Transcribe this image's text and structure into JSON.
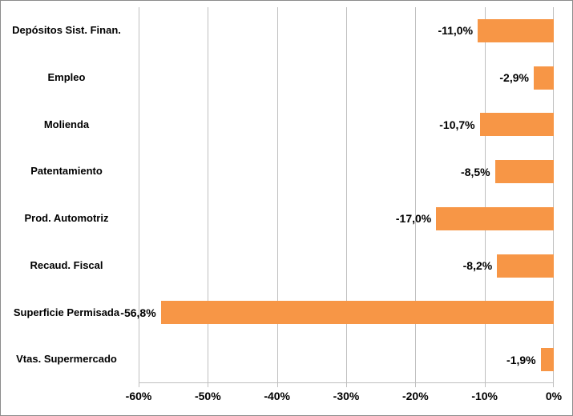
{
  "chart_data": {
    "type": "bar",
    "orientation": "horizontal",
    "title": "",
    "xlabel": "",
    "ylabel": "",
    "categories": [
      "Depósitos Sist. Finan.",
      "Empleo",
      "Molienda",
      "Patentamiento",
      "Prod. Automotriz",
      "Recaud. Fiscal",
      "Superficie Permisada",
      "Vtas. Supermercado"
    ],
    "values": [
      -11.0,
      -2.9,
      -10.7,
      -8.5,
      -17.0,
      -8.2,
      -56.8,
      -1.9
    ],
    "value_labels": [
      "-11,0%",
      "-2,9%",
      "-10,7%",
      "-8,5%",
      "-17,0%",
      "-8,2%",
      "-56,8%",
      "-1,9%"
    ],
    "xlim": [
      -60,
      0
    ],
    "x_tick_values": [
      -60,
      -50,
      -40,
      -30,
      -20,
      -10,
      0
    ],
    "x_ticks": [
      "-60%",
      "-50%",
      "-40%",
      "-30%",
      "-20%",
      "-10%",
      "0%"
    ],
    "grid": true,
    "legend": false,
    "bar_color": "#F79646",
    "gridline_color": "#BFBFBF",
    "axis_line_color": "#BFBFBF",
    "text_color": "#000000",
    "background_color": "#FFFFFF",
    "border_color": "#8C8C8C"
  }
}
